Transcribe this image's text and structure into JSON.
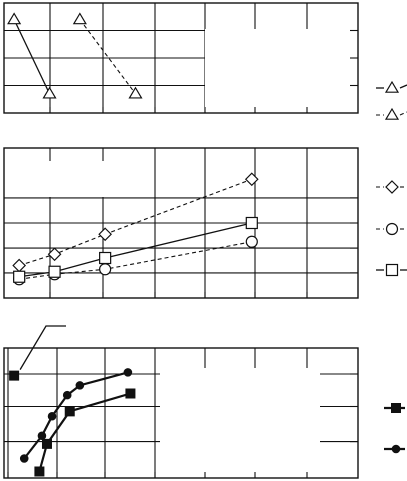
{
  "chart_data": [
    {
      "type": "line",
      "panel": "top",
      "xlim": [
        0,
        7
      ],
      "ylim": [
        0,
        4
      ],
      "grid": true,
      "legend_position": "right",
      "series": [
        {
          "marker": "triangle-open",
          "line": "solid",
          "x": [
            0.2,
            0.9
          ],
          "y": [
            3.4,
            0.7
          ]
        },
        {
          "marker": "triangle-open",
          "line": "dashed",
          "x": [
            1.5,
            2.6
          ],
          "y": [
            3.4,
            0.7
          ]
        }
      ]
    },
    {
      "type": "line",
      "panel": "middle",
      "xlim": [
        0,
        7
      ],
      "ylim": [
        0,
        6
      ],
      "grid": true,
      "legend_position": "right",
      "series": [
        {
          "marker": "diamond-open",
          "line": "dashed",
          "x": [
            0.3,
            1.0,
            2.0,
            4.9
          ],
          "y": [
            1.3,
            1.75,
            2.55,
            4.75
          ]
        },
        {
          "marker": "circle-open",
          "line": "dashed",
          "x": [
            0.3,
            1.0,
            2.0,
            4.9
          ],
          "y": [
            0.75,
            0.95,
            1.15,
            2.25
          ]
        },
        {
          "marker": "square-open",
          "line": "solid",
          "x": [
            0.3,
            1.0,
            2.0,
            4.9
          ],
          "y": [
            0.85,
            1.05,
            1.6,
            3.0
          ]
        }
      ]
    },
    {
      "type": "line",
      "panel": "bottom",
      "xlim": [
        0,
        7
      ],
      "ylim": [
        0,
        4
      ],
      "grid": true,
      "legend_position": "right",
      "series": [
        {
          "marker": "square-filled",
          "line": "solid",
          "x": [
            0.7,
            0.85,
            1.3,
            2.5
          ],
          "y": [
            0.2,
            1.05,
            2.05,
            2.6
          ]
        },
        {
          "marker": "circle-filled",
          "line": "solid",
          "x": [
            0.4,
            0.75,
            0.95,
            1.25,
            1.5,
            2.45
          ],
          "y": [
            0.6,
            1.3,
            1.9,
            2.55,
            2.85,
            3.25
          ]
        }
      ],
      "annotation": {
        "marker": "square-filled",
        "x": 0.2,
        "y": 3.15
      }
    }
  ]
}
